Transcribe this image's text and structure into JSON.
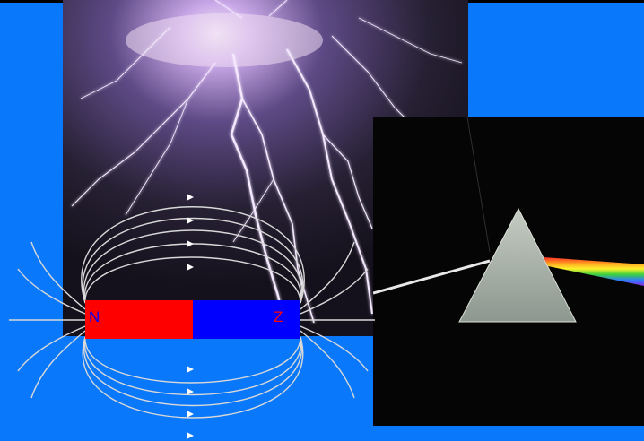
{
  "colors": {
    "background": "#0A78FA",
    "frame": "#000000",
    "magnet_north": "#FF0000",
    "magnet_south": "#0000FF",
    "north_label": "#0000FF",
    "south_label": "#FF0000",
    "field_lines": "#D8D8D8",
    "lightning_sky_top": "#C9A8E8",
    "lightning_sky_bottom": "#1A1424",
    "prism_background": "#050505",
    "prism_face": "#A9B3AC"
  },
  "magnet": {
    "north_label": "N",
    "south_label": "Z"
  },
  "icons": [
    "lightning-photo",
    "prism-photo",
    "bar-magnet-diagram",
    "field-arrow-icon"
  ]
}
